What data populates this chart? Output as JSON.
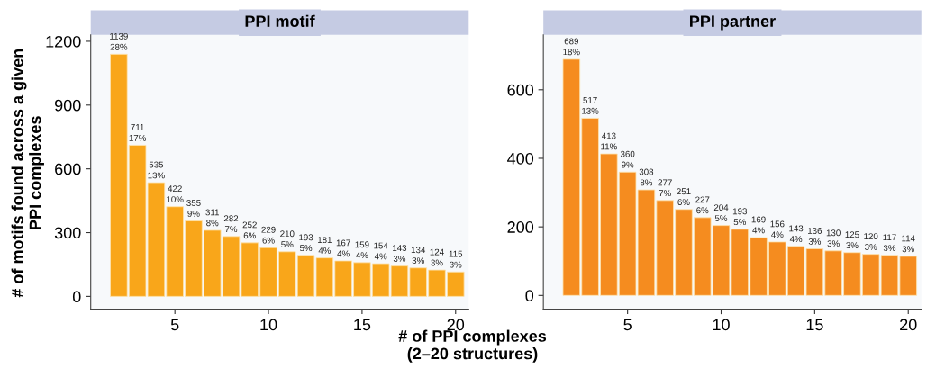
{
  "chart_data": [
    {
      "type": "bar",
      "title": "PPI motif",
      "xlabel": "# of PPI complexes\n(2–20 structures)",
      "ylabel": "# of motifs found across a given\nPPI complexes",
      "x": [
        2,
        3,
        4,
        5,
        6,
        7,
        8,
        9,
        10,
        11,
        12,
        13,
        14,
        15,
        16,
        17,
        18,
        19,
        20
      ],
      "values": [
        1139,
        711,
        535,
        422,
        355,
        311,
        282,
        252,
        229,
        210,
        193,
        181,
        167,
        159,
        154,
        143,
        134,
        124,
        115
      ],
      "value_labels": [
        "1139\n28%",
        "711\n17%",
        "535\n13%",
        "422\n10%",
        "355\n9%",
        "311\n8%",
        "282\n7%",
        "252\n6%",
        "229\n6%",
        "210\n5%",
        "193\n5%",
        "181\n4%",
        "167\n4%",
        "159\n4%",
        "154\n4%",
        "143\n3%",
        "134\n3%",
        "124\n3%",
        "115\n3%"
      ],
      "color": "#f9a61a",
      "xlim": [
        0.5,
        20.7
      ],
      "xticks": [
        5,
        10,
        15,
        20
      ],
      "ylim": [
        -60,
        1230
      ],
      "yticks": [
        0,
        300,
        600,
        900,
        1200
      ],
      "grid": false,
      "legend": false
    },
    {
      "type": "bar",
      "title": "PPI partner",
      "x": [
        2,
        3,
        4,
        5,
        6,
        7,
        8,
        9,
        10,
        11,
        12,
        13,
        14,
        15,
        16,
        17,
        18,
        19,
        20
      ],
      "values": [
        689,
        517,
        413,
        360,
        308,
        277,
        251,
        227,
        204,
        193,
        169,
        156,
        143,
        136,
        130,
        125,
        120,
        117,
        114
      ],
      "value_labels": [
        "689\n18%",
        "517\n13%",
        "413\n11%",
        "360\n9%",
        "308\n8%",
        "277\n7%",
        "251\n6%",
        "227\n6%",
        "204\n5%",
        "193\n5%",
        "169\n4%",
        "156\n4%",
        "143\n4%",
        "136\n3%",
        "130\n3%",
        "125\n3%",
        "120\n3%",
        "117\n3%",
        "114\n3%"
      ],
      "color": "#f58c1f",
      "xlim": [
        0.5,
        20.7
      ],
      "xticks": [
        5,
        10,
        15,
        20
      ],
      "ylim": [
        -40,
        760
      ],
      "yticks": [
        0,
        200,
        400,
        600
      ],
      "grid": false,
      "legend": false
    }
  ]
}
